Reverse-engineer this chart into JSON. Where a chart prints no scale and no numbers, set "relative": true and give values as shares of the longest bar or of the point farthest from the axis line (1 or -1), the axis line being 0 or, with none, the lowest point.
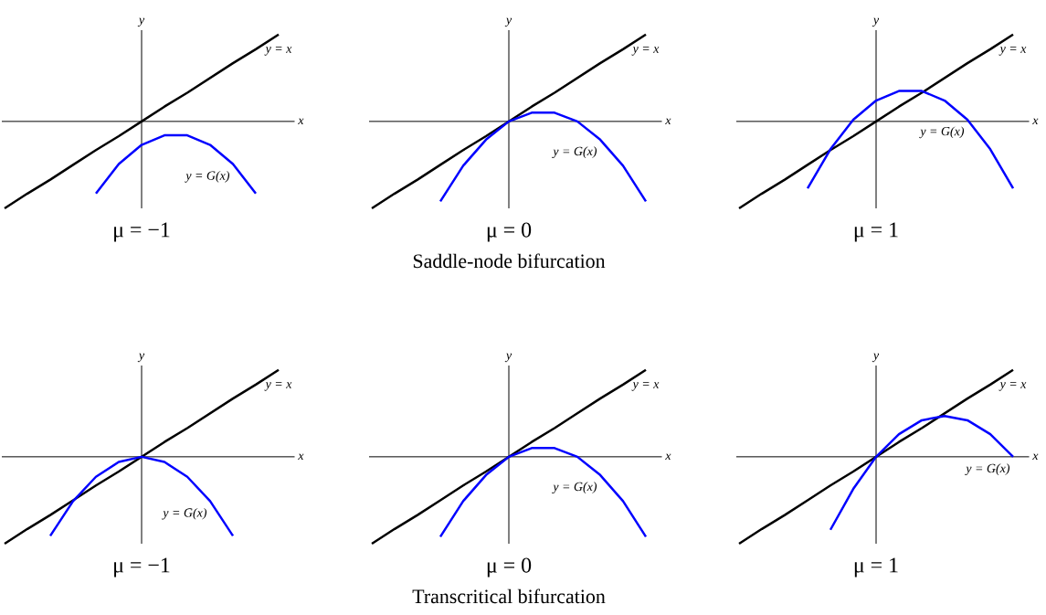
{
  "chart_data": [
    {
      "type": "line",
      "relative": true,
      "xlabel": "x",
      "ylabel": "y",
      "categories": [
        null,
        null,
        null,
        null,
        null,
        null,
        null,
        null,
        null,
        null,
        null,
        null,
        null
      ],
      "annotations": [
        "μ = −1"
      ],
      "series": [
        {
          "name": "y = x",
          "color": "#000000",
          "values": [
            -1,
            -0.83,
            -0.67,
            -0.5,
            -0.33,
            -0.17,
            0,
            0.17,
            0.33,
            0.5,
            0.67,
            0.83,
            1
          ]
        },
        {
          "name": "y = G(x)",
          "color": "#0000ff",
          "values": [
            null,
            null,
            null,
            null,
            -0.83,
            -0.49,
            -0.27,
            -0.16,
            -0.16,
            -0.27,
            -0.49,
            -0.83,
            null
          ]
        }
      ]
    },
    {
      "type": "line",
      "relative": true,
      "xlabel": "x",
      "ylabel": "y",
      "categories": [
        null,
        null,
        null,
        null,
        null,
        null,
        null,
        null,
        null,
        null,
        null,
        null,
        null
      ],
      "annotations": [
        "μ = 0",
        "Saddle-node bifurcation"
      ],
      "series": [
        {
          "name": "y = x",
          "color": "#000000",
          "values": [
            -1,
            -0.83,
            -0.67,
            -0.5,
            -0.33,
            -0.17,
            0,
            0.17,
            0.33,
            0.5,
            0.67,
            0.83,
            1
          ]
        },
        {
          "name": "y = G(x)",
          "color": "#0000ff",
          "values": [
            null,
            null,
            null,
            -0.92,
            -0.51,
            -0.21,
            0,
            0.1,
            0.1,
            0,
            -0.21,
            -0.51,
            -0.92
          ]
        }
      ]
    },
    {
      "type": "line",
      "relative": true,
      "xlabel": "x",
      "ylabel": "y",
      "categories": [
        null,
        null,
        null,
        null,
        null,
        null,
        null,
        null,
        null,
        null,
        null,
        null,
        null
      ],
      "annotations": [
        "μ = 1"
      ],
      "series": [
        {
          "name": "y = x",
          "color": "#000000",
          "values": [
            -1,
            -0.83,
            -0.67,
            -0.5,
            -0.33,
            -0.17,
            0,
            0.17,
            0.33,
            0.5,
            0.67,
            0.83,
            1
          ]
        },
        {
          "name": "y = G(x)",
          "color": "#0000ff",
          "values": [
            null,
            null,
            null,
            -0.77,
            -0.32,
            0.02,
            0.24,
            0.35,
            0.35,
            0.24,
            0.02,
            -0.32,
            -0.77
          ]
        }
      ]
    },
    {
      "type": "line",
      "relative": true,
      "xlabel": "x",
      "ylabel": "y",
      "categories": [
        null,
        null,
        null,
        null,
        null,
        null,
        null,
        null,
        null,
        null,
        null,
        null,
        null
      ],
      "annotations": [
        "μ = −1"
      ],
      "series": [
        {
          "name": "y = x",
          "color": "#000000",
          "values": [
            -1,
            -0.83,
            -0.67,
            -0.5,
            -0.33,
            -0.17,
            0,
            0.17,
            0.33,
            0.5,
            0.67,
            0.83,
            1
          ]
        },
        {
          "name": "y = G(x)",
          "color": "#0000ff",
          "values": [
            null,
            null,
            -0.91,
            -0.51,
            -0.23,
            -0.06,
            0,
            -0.06,
            -0.23,
            -0.51,
            -0.91,
            null,
            null
          ]
        }
      ]
    },
    {
      "type": "line",
      "relative": true,
      "xlabel": "x",
      "ylabel": "y",
      "categories": [
        null,
        null,
        null,
        null,
        null,
        null,
        null,
        null,
        null,
        null,
        null,
        null,
        null
      ],
      "annotations": [
        "μ = 0",
        "Transcritical bifurcation"
      ],
      "series": [
        {
          "name": "y = x",
          "color": "#000000",
          "values": [
            -1,
            -0.83,
            -0.67,
            -0.5,
            -0.33,
            -0.17,
            0,
            0.17,
            0.33,
            0.5,
            0.67,
            0.83,
            1
          ]
        },
        {
          "name": "y = G(x)",
          "color": "#0000ff",
          "values": [
            null,
            null,
            null,
            -0.92,
            -0.51,
            -0.21,
            0,
            0.1,
            0.1,
            0,
            -0.21,
            -0.51,
            -0.92
          ]
        }
      ]
    },
    {
      "type": "line",
      "relative": true,
      "xlabel": "x",
      "ylabel": "y",
      "categories": [
        null,
        null,
        null,
        null,
        null,
        null,
        null,
        null,
        null,
        null,
        null,
        null,
        null
      ],
      "annotations": [
        "μ = 1"
      ],
      "series": [
        {
          "name": "y = x",
          "color": "#000000",
          "values": [
            -1,
            -0.83,
            -0.67,
            -0.5,
            -0.33,
            -0.17,
            0,
            0.17,
            0.33,
            0.5,
            0.67,
            0.83,
            1
          ]
        },
        {
          "name": "y = G(x)",
          "color": "#0000ff",
          "values": [
            null,
            null,
            null,
            null,
            -0.84,
            -0.37,
            0,
            0.26,
            0.42,
            0.47,
            0.42,
            0.26,
            0
          ]
        }
      ]
    }
  ]
}
